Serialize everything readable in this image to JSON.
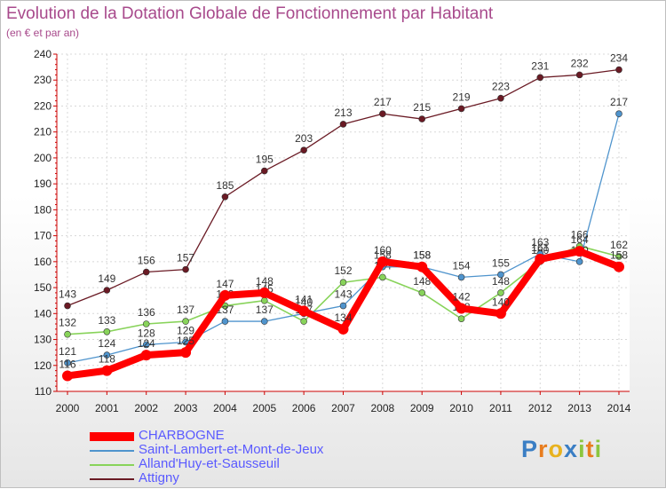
{
  "chart_data": {
    "type": "line",
    "title": "Evolution de la Dotation Globale de Fonctionnement par Habitant",
    "subtitle": "(en € et par an)",
    "xlabel": "",
    "ylabel": "",
    "ylim": [
      110,
      240
    ],
    "yticks": [
      110,
      120,
      130,
      140,
      150,
      160,
      170,
      180,
      190,
      200,
      210,
      220,
      230,
      240
    ],
    "grid": true,
    "categories": [
      "2000",
      "2001",
      "2002",
      "2003",
      "2004",
      "2005",
      "2006",
      "2007",
      "2008",
      "2009",
      "2010",
      "2011",
      "2012",
      "2013",
      "2014"
    ],
    "series": [
      {
        "name": "CHARBOGNE",
        "color": "#ff0000",
        "values": [
          116,
          118,
          124,
          125,
          147,
          148,
          141,
          134,
          160,
          158,
          142,
          140,
          161,
          164,
          158
        ]
      },
      {
        "name": "Saint-Lambert-et-Mont-de-Jeux",
        "color": "#4f94cd",
        "values": [
          121,
          124,
          128,
          129,
          137,
          137,
          140,
          143,
          158,
          158,
          154,
          155,
          163,
          160,
          217
        ]
      },
      {
        "name": "Alland'Huy-et-Sausseuil",
        "color": "#88d35a",
        "values": [
          132,
          133,
          136,
          137,
          143,
          145,
          137,
          152,
          154,
          148,
          138,
          148,
          160,
          166,
          162
        ]
      },
      {
        "name": "Attigny",
        "color": "#6a1a24",
        "values": [
          143,
          149,
          156,
          157,
          185,
          195,
          203,
          213,
          217,
          215,
          219,
          223,
          231,
          232,
          234
        ]
      }
    ]
  },
  "brand": {
    "letters": [
      "P",
      "r",
      "o",
      "x",
      "i",
      "t",
      "i"
    ],
    "colors": [
      "#3a7ec4",
      "#e87d1e",
      "#e8b21e",
      "#3a7ec4",
      "#8cc63f",
      "#e87d1e",
      "#8cc63f"
    ]
  }
}
